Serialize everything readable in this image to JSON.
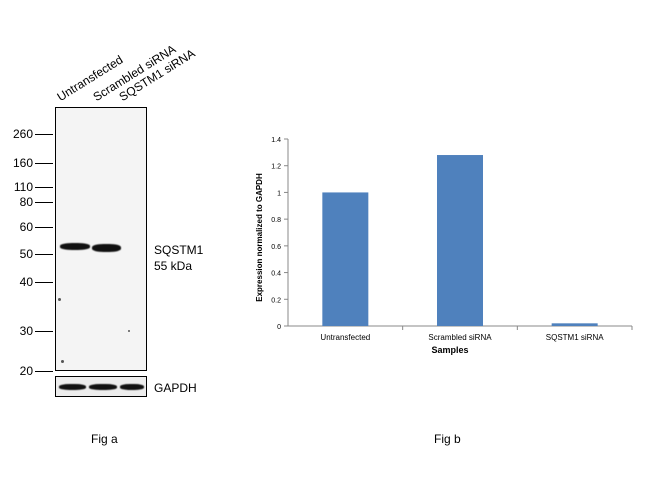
{
  "fig_a": {
    "lanes": [
      "Untransfected",
      "Scrambled siRNA",
      "SQSTM1 siRNA"
    ],
    "mw_markers": [
      "260",
      "160",
      "110",
      "80",
      "60",
      "50",
      "40",
      "30",
      "20"
    ],
    "target_label": "SQSTM1",
    "target_size": "55 kDa",
    "loading_control": "GAPDH",
    "caption": "Fig a"
  },
  "fig_b": {
    "caption": "Fig b"
  },
  "chart_data": {
    "type": "bar",
    "categories": [
      "Untransfected",
      "Scrambled siRNA",
      "SQSTM1 siRNA"
    ],
    "values": [
      1.0,
      1.28,
      0.02
    ],
    "xlabel": "Samples",
    "ylabel": "Expression normalized to GAPDH",
    "ylim": [
      0,
      1.4
    ],
    "yticks": [
      "0",
      "0.2",
      "0.4",
      "0.6",
      "0.8",
      "1",
      "1.2",
      "1.4"
    ],
    "bar_color": "#4f81bd",
    "grid": false,
    "legend": "none"
  }
}
